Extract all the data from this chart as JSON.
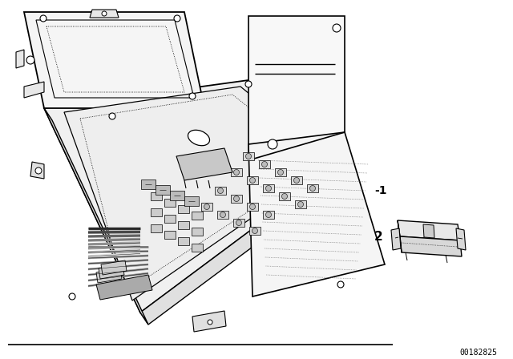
{
  "bg_color": "#ffffff",
  "line_color": "#000000",
  "fig_width": 6.4,
  "fig_height": 4.48,
  "dpi": 100,
  "watermark": "00182825",
  "label1": "-1",
  "label2": "2"
}
